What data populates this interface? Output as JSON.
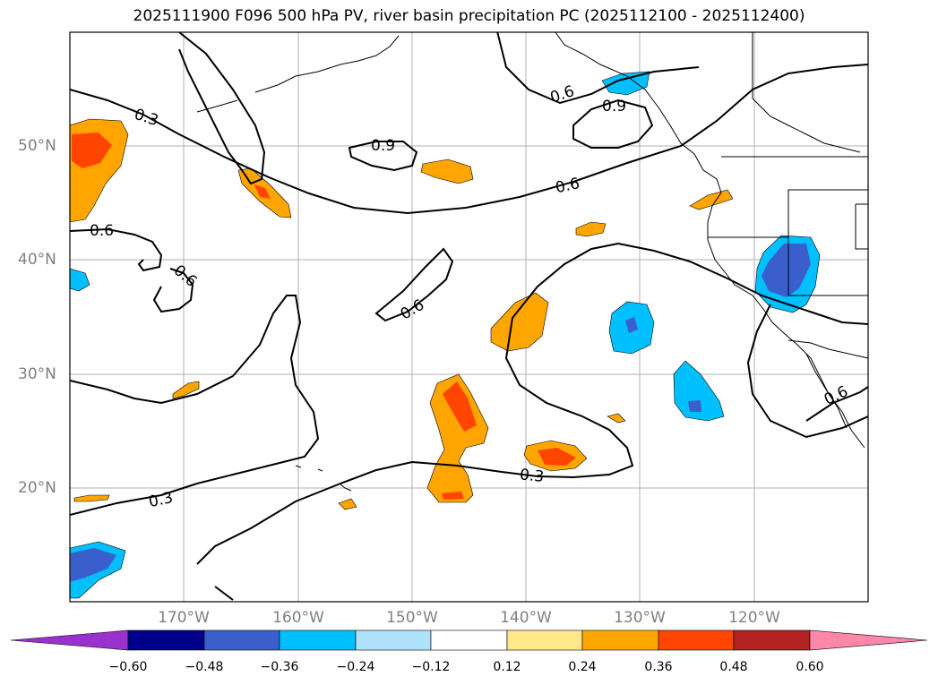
{
  "title": "2025111900 F096 500 hPa PV, river basin precipitation PC (2025112100 - 2025112400)",
  "map": {
    "lat_labels": [
      "50°N",
      "40°N",
      "30°N",
      "20°N"
    ],
    "lon_labels": [
      "170°W",
      "160°W",
      "150°W",
      "140°W",
      "130°W",
      "120°W"
    ],
    "contour_labels": [
      "0.3",
      "0.6",
      "0.6",
      "0.6",
      "0.9",
      "0.9",
      "0.6",
      "0.6",
      "0.3",
      "0.3",
      "0.6"
    ],
    "grid_color": "#b0b0b0",
    "contour_color": "#000000"
  },
  "colorbar": {
    "ticks": [
      "−0.60",
      "−0.48",
      "−0.36",
      "−0.24",
      "−0.12",
      "0.12",
      "0.24",
      "0.36",
      "0.48",
      "0.60"
    ],
    "colors": [
      "#9932cc",
      "#00008b",
      "#3a5fcd",
      "#00bfff",
      "#aee2fb",
      "#ffffff",
      "#ffe98a",
      "#ffa500",
      "#ff4500",
      "#b22222",
      "#ff88aa"
    ]
  }
}
